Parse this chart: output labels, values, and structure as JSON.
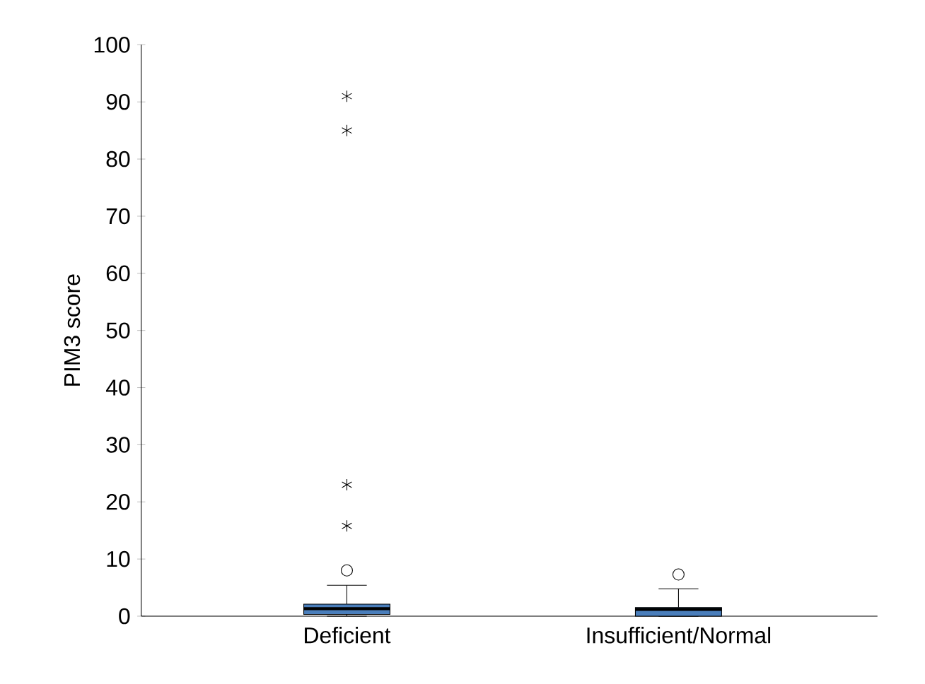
{
  "chart_data": {
    "type": "box",
    "ylabel": "PIM3 score",
    "categories": [
      "Deficient",
      "Insufficient/Normal"
    ],
    "boxes": [
      {
        "low": 0,
        "q1": 0.3,
        "median": 1.3,
        "q3": 2.1,
        "high": 5.4,
        "outliers": [
          8,
          15.8,
          23,
          85,
          91
        ]
      },
      {
        "low": 0,
        "q1": 0,
        "median": 1.2,
        "q3": 1.5,
        "high": 4.8,
        "outliers": [
          7.3
        ]
      }
    ],
    "color": "#4a7ebb",
    "ylim": [
      0,
      100
    ],
    "yticks": [
      0,
      10,
      20,
      30,
      40,
      50,
      60,
      70,
      80,
      90,
      100
    ]
  }
}
